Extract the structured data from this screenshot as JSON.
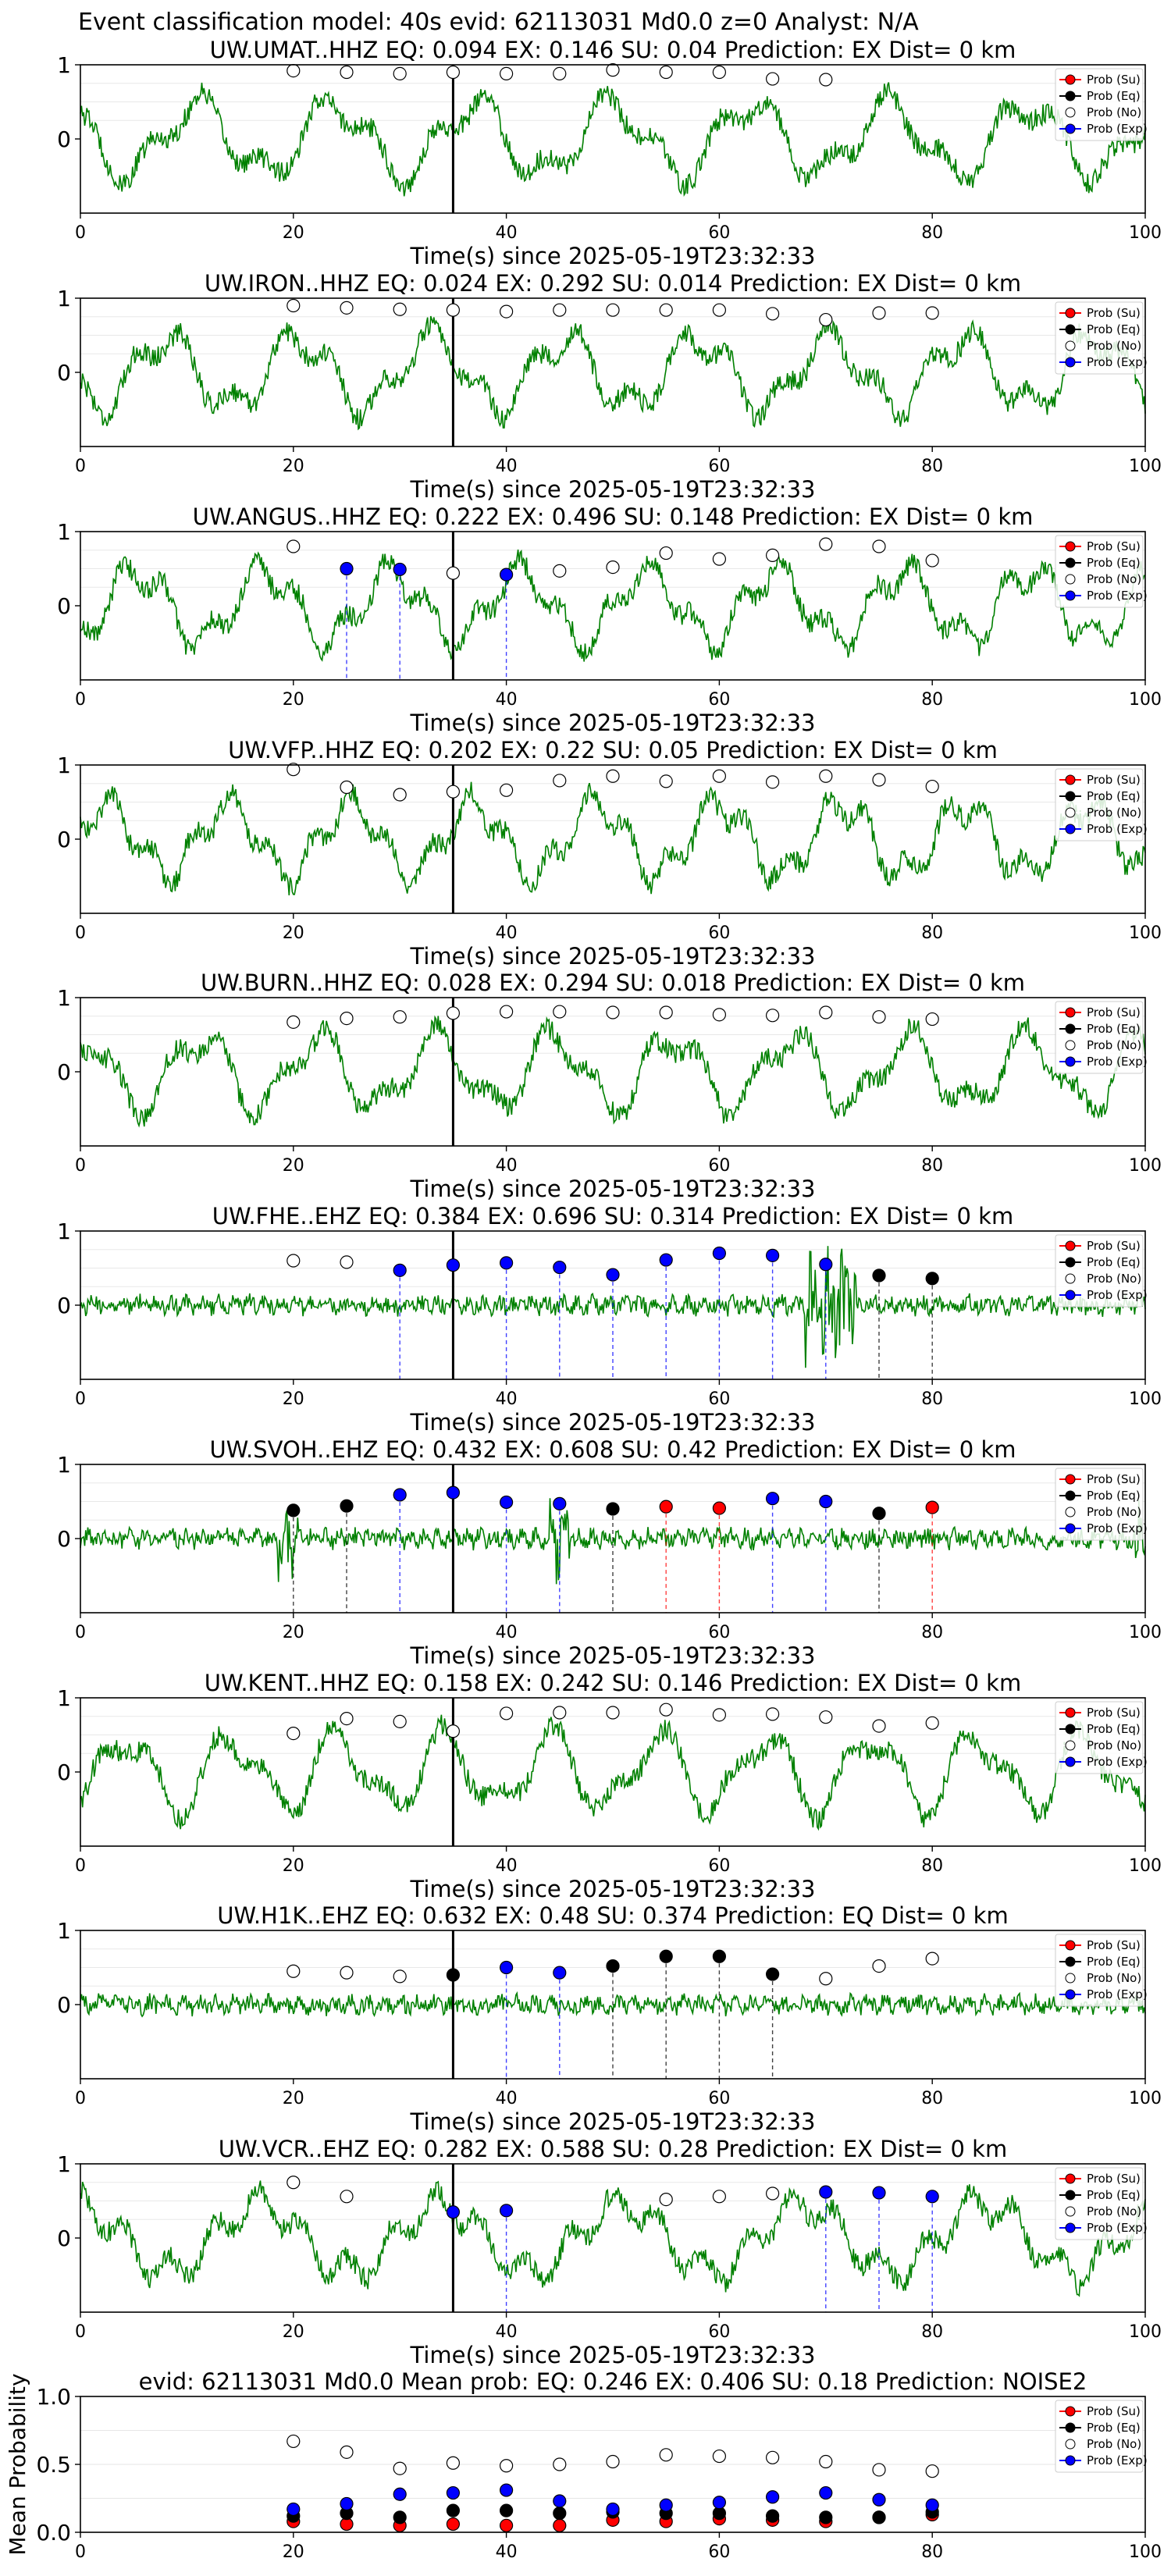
{
  "figure": {
    "suptitle": "Event classification model: 40s evid: 62113031 Md0.0 z=0 Analyst: N/A",
    "x_label": "Time(s) since 2025-05-19T23:32:33",
    "legend_labels": [
      "Prob (Su)",
      "Prob (Eq)",
      "Prob (No)",
      "Prob (Exp)"
    ],
    "colors": {
      "waveform": "#008000",
      "su": "#ff0000",
      "eq": "#000000",
      "no": "#ffffff",
      "exp": "#0000ff",
      "origin_line": "#000000"
    }
  },
  "chart_data": [
    {
      "type": "line",
      "title": "UW.UMAT..HHZ   EQ: 0.094  EX: 0.146  SU: 0.04   Prediction: EX    Dist= 0 km",
      "xlim": [
        0,
        100
      ],
      "ylim": [
        -1,
        1
      ],
      "x_ticks": [
        0,
        20,
        40,
        60,
        80,
        100
      ],
      "y_ticks": [
        0,
        1
      ],
      "origin_time": 35,
      "windows": [
        {
          "t": 20,
          "class": "No",
          "p": 0.92
        },
        {
          "t": 25,
          "class": "No",
          "p": 0.9
        },
        {
          "t": 30,
          "class": "No",
          "p": 0.88
        },
        {
          "t": 35,
          "class": "No",
          "p": 0.9
        },
        {
          "t": 40,
          "class": "No",
          "p": 0.88
        },
        {
          "t": 45,
          "class": "No",
          "p": 0.88
        },
        {
          "t": 50,
          "class": "No",
          "p": 0.93
        },
        {
          "t": 55,
          "class": "No",
          "p": 0.9
        },
        {
          "t": 60,
          "class": "No",
          "p": 0.9
        },
        {
          "t": 65,
          "class": "No",
          "p": 0.81
        },
        {
          "t": 70,
          "class": "No",
          "p": 0.8
        }
      ]
    },
    {
      "type": "line",
      "title": "UW.IRON..HHZ   EQ: 0.024  EX: 0.292  SU: 0.014   Prediction: EX    Dist= 0 km",
      "xlim": [
        0,
        100
      ],
      "ylim": [
        -1,
        1
      ],
      "x_ticks": [
        0,
        20,
        40,
        60,
        80,
        100
      ],
      "y_ticks": [
        0,
        1
      ],
      "origin_time": 35,
      "windows": [
        {
          "t": 20,
          "class": "No",
          "p": 0.9
        },
        {
          "t": 25,
          "class": "No",
          "p": 0.87
        },
        {
          "t": 30,
          "class": "No",
          "p": 0.85
        },
        {
          "t": 35,
          "class": "No",
          "p": 0.84
        },
        {
          "t": 40,
          "class": "No",
          "p": 0.82
        },
        {
          "t": 45,
          "class": "No",
          "p": 0.84
        },
        {
          "t": 50,
          "class": "No",
          "p": 0.84
        },
        {
          "t": 55,
          "class": "No",
          "p": 0.84
        },
        {
          "t": 60,
          "class": "No",
          "p": 0.84
        },
        {
          "t": 65,
          "class": "No",
          "p": 0.79
        },
        {
          "t": 70,
          "class": "No",
          "p": 0.71
        },
        {
          "t": 75,
          "class": "No",
          "p": 0.8
        },
        {
          "t": 80,
          "class": "No",
          "p": 0.8
        }
      ]
    },
    {
      "type": "line",
      "title": "UW.ANGUS..HHZ   EQ: 0.222  EX: 0.496  SU: 0.148   Prediction: EX    Dist= 0 km",
      "xlim": [
        0,
        100
      ],
      "ylim": [
        -1,
        1
      ],
      "x_ticks": [
        0,
        20,
        40,
        60,
        80,
        100
      ],
      "y_ticks": [
        0,
        1
      ],
      "origin_time": 35,
      "windows": [
        {
          "t": 20,
          "class": "No",
          "p": 0.8
        },
        {
          "t": 25,
          "class": "Exp",
          "p": 0.5
        },
        {
          "t": 30,
          "class": "Exp",
          "p": 0.49
        },
        {
          "t": 35,
          "class": "No",
          "p": 0.44
        },
        {
          "t": 40,
          "class": "Exp",
          "p": 0.42
        },
        {
          "t": 45,
          "class": "No",
          "p": 0.47
        },
        {
          "t": 50,
          "class": "No",
          "p": 0.52
        },
        {
          "t": 55,
          "class": "No",
          "p": 0.71
        },
        {
          "t": 60,
          "class": "No",
          "p": 0.63
        },
        {
          "t": 65,
          "class": "No",
          "p": 0.68
        },
        {
          "t": 70,
          "class": "No",
          "p": 0.83
        },
        {
          "t": 75,
          "class": "No",
          "p": 0.8
        },
        {
          "t": 80,
          "class": "No",
          "p": 0.61
        }
      ]
    },
    {
      "type": "line",
      "title": "UW.VFP..HHZ   EQ: 0.202  EX: 0.22  SU: 0.05   Prediction: EX    Dist= 0 km",
      "xlim": [
        0,
        100
      ],
      "ylim": [
        -1,
        1
      ],
      "x_ticks": [
        0,
        20,
        40,
        60,
        80,
        100
      ],
      "y_ticks": [
        0,
        1
      ],
      "origin_time": 35,
      "windows": [
        {
          "t": 20,
          "class": "No",
          "p": 0.94
        },
        {
          "t": 25,
          "class": "No",
          "p": 0.7
        },
        {
          "t": 30,
          "class": "No",
          "p": 0.6
        },
        {
          "t": 35,
          "class": "No",
          "p": 0.64
        },
        {
          "t": 40,
          "class": "No",
          "p": 0.66
        },
        {
          "t": 45,
          "class": "No",
          "p": 0.79
        },
        {
          "t": 50,
          "class": "No",
          "p": 0.85
        },
        {
          "t": 55,
          "class": "No",
          "p": 0.78
        },
        {
          "t": 60,
          "class": "No",
          "p": 0.85
        },
        {
          "t": 65,
          "class": "No",
          "p": 0.77
        },
        {
          "t": 70,
          "class": "No",
          "p": 0.85
        },
        {
          "t": 75,
          "class": "No",
          "p": 0.8
        },
        {
          "t": 80,
          "class": "No",
          "p": 0.71
        }
      ]
    },
    {
      "type": "line",
      "title": "UW.BURN..HHZ   EQ: 0.028  EX: 0.294  SU: 0.018   Prediction: EX    Dist= 0 km",
      "xlim": [
        0,
        100
      ],
      "ylim": [
        -1,
        1
      ],
      "x_ticks": [
        0,
        20,
        40,
        60,
        80,
        100
      ],
      "y_ticks": [
        0,
        1
      ],
      "origin_time": 35,
      "windows": [
        {
          "t": 20,
          "class": "No",
          "p": 0.67
        },
        {
          "t": 25,
          "class": "No",
          "p": 0.72
        },
        {
          "t": 30,
          "class": "No",
          "p": 0.74
        },
        {
          "t": 35,
          "class": "No",
          "p": 0.79
        },
        {
          "t": 40,
          "class": "No",
          "p": 0.81
        },
        {
          "t": 45,
          "class": "No",
          "p": 0.81
        },
        {
          "t": 50,
          "class": "No",
          "p": 0.8
        },
        {
          "t": 55,
          "class": "No",
          "p": 0.8
        },
        {
          "t": 60,
          "class": "No",
          "p": 0.77
        },
        {
          "t": 65,
          "class": "No",
          "p": 0.76
        },
        {
          "t": 70,
          "class": "No",
          "p": 0.8
        },
        {
          "t": 75,
          "class": "No",
          "p": 0.74
        },
        {
          "t": 80,
          "class": "No",
          "p": 0.71
        }
      ]
    },
    {
      "type": "line",
      "title": "UW.FHE..EHZ   EQ: 0.384  EX: 0.696  SU: 0.314   Prediction: EX    Dist= 0 km",
      "xlim": [
        0,
        100
      ],
      "ylim": [
        -1,
        1
      ],
      "x_ticks": [
        0,
        20,
        40,
        60,
        80,
        100
      ],
      "y_ticks": [
        0,
        1
      ],
      "origin_time": 35,
      "windows": [
        {
          "t": 20,
          "class": "No",
          "p": 0.6
        },
        {
          "t": 25,
          "class": "No",
          "p": 0.58
        },
        {
          "t": 30,
          "class": "Exp",
          "p": 0.47
        },
        {
          "t": 35,
          "class": "Exp",
          "p": 0.54
        },
        {
          "t": 40,
          "class": "Exp",
          "p": 0.57
        },
        {
          "t": 45,
          "class": "Exp",
          "p": 0.51
        },
        {
          "t": 50,
          "class": "Exp",
          "p": 0.41
        },
        {
          "t": 55,
          "class": "Exp",
          "p": 0.61
        },
        {
          "t": 60,
          "class": "Exp",
          "p": 0.7
        },
        {
          "t": 65,
          "class": "Exp",
          "p": 0.67
        },
        {
          "t": 70,
          "class": "Exp",
          "p": 0.55
        },
        {
          "t": 75,
          "class": "Eq",
          "p": 0.4
        },
        {
          "t": 80,
          "class": "Eq",
          "p": 0.36
        }
      ]
    },
    {
      "type": "line",
      "title": "UW.SVOH..EHZ   EQ: 0.432  EX: 0.608  SU: 0.42   Prediction: EX    Dist= 0 km",
      "xlim": [
        0,
        100
      ],
      "ylim": [
        -1,
        1
      ],
      "x_ticks": [
        0,
        20,
        40,
        60,
        80,
        100
      ],
      "y_ticks": [
        0,
        1
      ],
      "origin_time": 35,
      "windows": [
        {
          "t": 20,
          "class": "Eq",
          "p": 0.38
        },
        {
          "t": 25,
          "class": "Eq",
          "p": 0.44
        },
        {
          "t": 30,
          "class": "Exp",
          "p": 0.59
        },
        {
          "t": 35,
          "class": "Exp",
          "p": 0.62
        },
        {
          "t": 40,
          "class": "Exp",
          "p": 0.49
        },
        {
          "t": 45,
          "class": "Exp",
          "p": 0.47
        },
        {
          "t": 50,
          "class": "Eq",
          "p": 0.4
        },
        {
          "t": 55,
          "class": "Su",
          "p": 0.43
        },
        {
          "t": 60,
          "class": "Su",
          "p": 0.41
        },
        {
          "t": 65,
          "class": "Exp",
          "p": 0.54
        },
        {
          "t": 70,
          "class": "Exp",
          "p": 0.5
        },
        {
          "t": 75,
          "class": "Eq",
          "p": 0.34
        },
        {
          "t": 80,
          "class": "Su",
          "p": 0.42
        }
      ]
    },
    {
      "type": "line",
      "title": "UW.KENT..HHZ   EQ: 0.158  EX: 0.242  SU: 0.146   Prediction: EX    Dist= 0 km",
      "xlim": [
        0,
        100
      ],
      "ylim": [
        -1,
        1
      ],
      "x_ticks": [
        0,
        20,
        40,
        60,
        80,
        100
      ],
      "y_ticks": [
        0,
        1
      ],
      "origin_time": 35,
      "windows": [
        {
          "t": 20,
          "class": "No",
          "p": 0.52
        },
        {
          "t": 25,
          "class": "No",
          "p": 0.72
        },
        {
          "t": 30,
          "class": "No",
          "p": 0.68
        },
        {
          "t": 35,
          "class": "No",
          "p": 0.55
        },
        {
          "t": 40,
          "class": "No",
          "p": 0.79
        },
        {
          "t": 45,
          "class": "No",
          "p": 0.8
        },
        {
          "t": 50,
          "class": "No",
          "p": 0.8
        },
        {
          "t": 55,
          "class": "No",
          "p": 0.84
        },
        {
          "t": 60,
          "class": "No",
          "p": 0.77
        },
        {
          "t": 65,
          "class": "No",
          "p": 0.78
        },
        {
          "t": 70,
          "class": "No",
          "p": 0.74
        },
        {
          "t": 75,
          "class": "No",
          "p": 0.62
        },
        {
          "t": 80,
          "class": "No",
          "p": 0.66
        }
      ]
    },
    {
      "type": "line",
      "title": "UW.H1K..EHZ   EQ: 0.632  EX: 0.48  SU: 0.374   Prediction: EQ    Dist= 0 km",
      "xlim": [
        0,
        100
      ],
      "ylim": [
        -1,
        1
      ],
      "x_ticks": [
        0,
        20,
        40,
        60,
        80,
        100
      ],
      "y_ticks": [
        0,
        1
      ],
      "origin_time": 35,
      "windows": [
        {
          "t": 20,
          "class": "No",
          "p": 0.45
        },
        {
          "t": 25,
          "class": "No",
          "p": 0.43
        },
        {
          "t": 30,
          "class": "No",
          "p": 0.38
        },
        {
          "t": 35,
          "class": "Eq",
          "p": 0.4
        },
        {
          "t": 40,
          "class": "Exp",
          "p": 0.5
        },
        {
          "t": 45,
          "class": "Exp",
          "p": 0.43
        },
        {
          "t": 50,
          "class": "Eq",
          "p": 0.52
        },
        {
          "t": 55,
          "class": "Eq",
          "p": 0.65
        },
        {
          "t": 60,
          "class": "Eq",
          "p": 0.65
        },
        {
          "t": 65,
          "class": "Eq",
          "p": 0.41
        },
        {
          "t": 70,
          "class": "No",
          "p": 0.35
        },
        {
          "t": 75,
          "class": "No",
          "p": 0.52
        },
        {
          "t": 80,
          "class": "No",
          "p": 0.62
        }
      ]
    },
    {
      "type": "line",
      "title": "UW.VCR..EHZ   EQ: 0.282  EX: 0.588  SU: 0.28   Prediction: EX    Dist= 0 km",
      "xlim": [
        0,
        100
      ],
      "ylim": [
        -1,
        1
      ],
      "x_ticks": [
        0,
        20,
        40,
        60,
        80,
        100
      ],
      "y_ticks": [
        0,
        1
      ],
      "origin_time": 35,
      "windows": [
        {
          "t": 20,
          "class": "No",
          "p": 0.75
        },
        {
          "t": 25,
          "class": "No",
          "p": 0.56
        },
        {
          "t": 35,
          "class": "Exp",
          "p": 0.35
        },
        {
          "t": 40,
          "class": "Exp",
          "p": 0.37
        },
        {
          "t": 55,
          "class": "No",
          "p": 0.52
        },
        {
          "t": 60,
          "class": "No",
          "p": 0.56
        },
        {
          "t": 65,
          "class": "No",
          "p": 0.6
        },
        {
          "t": 70,
          "class": "Exp",
          "p": 0.62
        },
        {
          "t": 75,
          "class": "Exp",
          "p": 0.61
        },
        {
          "t": 80,
          "class": "Exp",
          "p": 0.56
        }
      ]
    },
    {
      "type": "scatter",
      "title": "evid: 62113031  Md0.0   Mean prob:   EQ: 0.246  EX: 0.406  SU: 0.18   Prediction: NOISE2",
      "ylabel": "Mean Probability",
      "xlim": [
        0,
        100
      ],
      "ylim": [
        0,
        1
      ],
      "x_ticks": [
        0,
        20,
        40,
        60,
        80,
        100
      ],
      "y_ticks": [
        0.0,
        0.5,
        1.0
      ],
      "y_tick_labels": [
        "0.0",
        "0.5",
        "1.0"
      ],
      "x": [
        20,
        25,
        30,
        35,
        40,
        45,
        50,
        55,
        60,
        65,
        70,
        75,
        80
      ],
      "series": [
        {
          "name": "Prob (Su)",
          "class": "Su",
          "values": [
            0.08,
            0.06,
            0.05,
            0.06,
            0.05,
            0.05,
            0.09,
            0.08,
            0.1,
            0.09,
            0.08,
            0.11,
            0.13
          ]
        },
        {
          "name": "Prob (Eq)",
          "class": "Eq",
          "values": [
            0.12,
            0.14,
            0.11,
            0.16,
            0.16,
            0.14,
            0.15,
            0.14,
            0.14,
            0.12,
            0.11,
            0.11,
            0.15
          ]
        },
        {
          "name": "Prob (No)",
          "class": "No",
          "values": [
            0.67,
            0.59,
            0.47,
            0.51,
            0.49,
            0.5,
            0.52,
            0.57,
            0.56,
            0.55,
            0.52,
            0.46,
            0.45
          ]
        },
        {
          "name": "Prob (Exp)",
          "class": "Exp",
          "values": [
            0.17,
            0.21,
            0.28,
            0.29,
            0.31,
            0.23,
            0.17,
            0.2,
            0.22,
            0.26,
            0.29,
            0.24,
            0.2
          ]
        }
      ]
    }
  ]
}
